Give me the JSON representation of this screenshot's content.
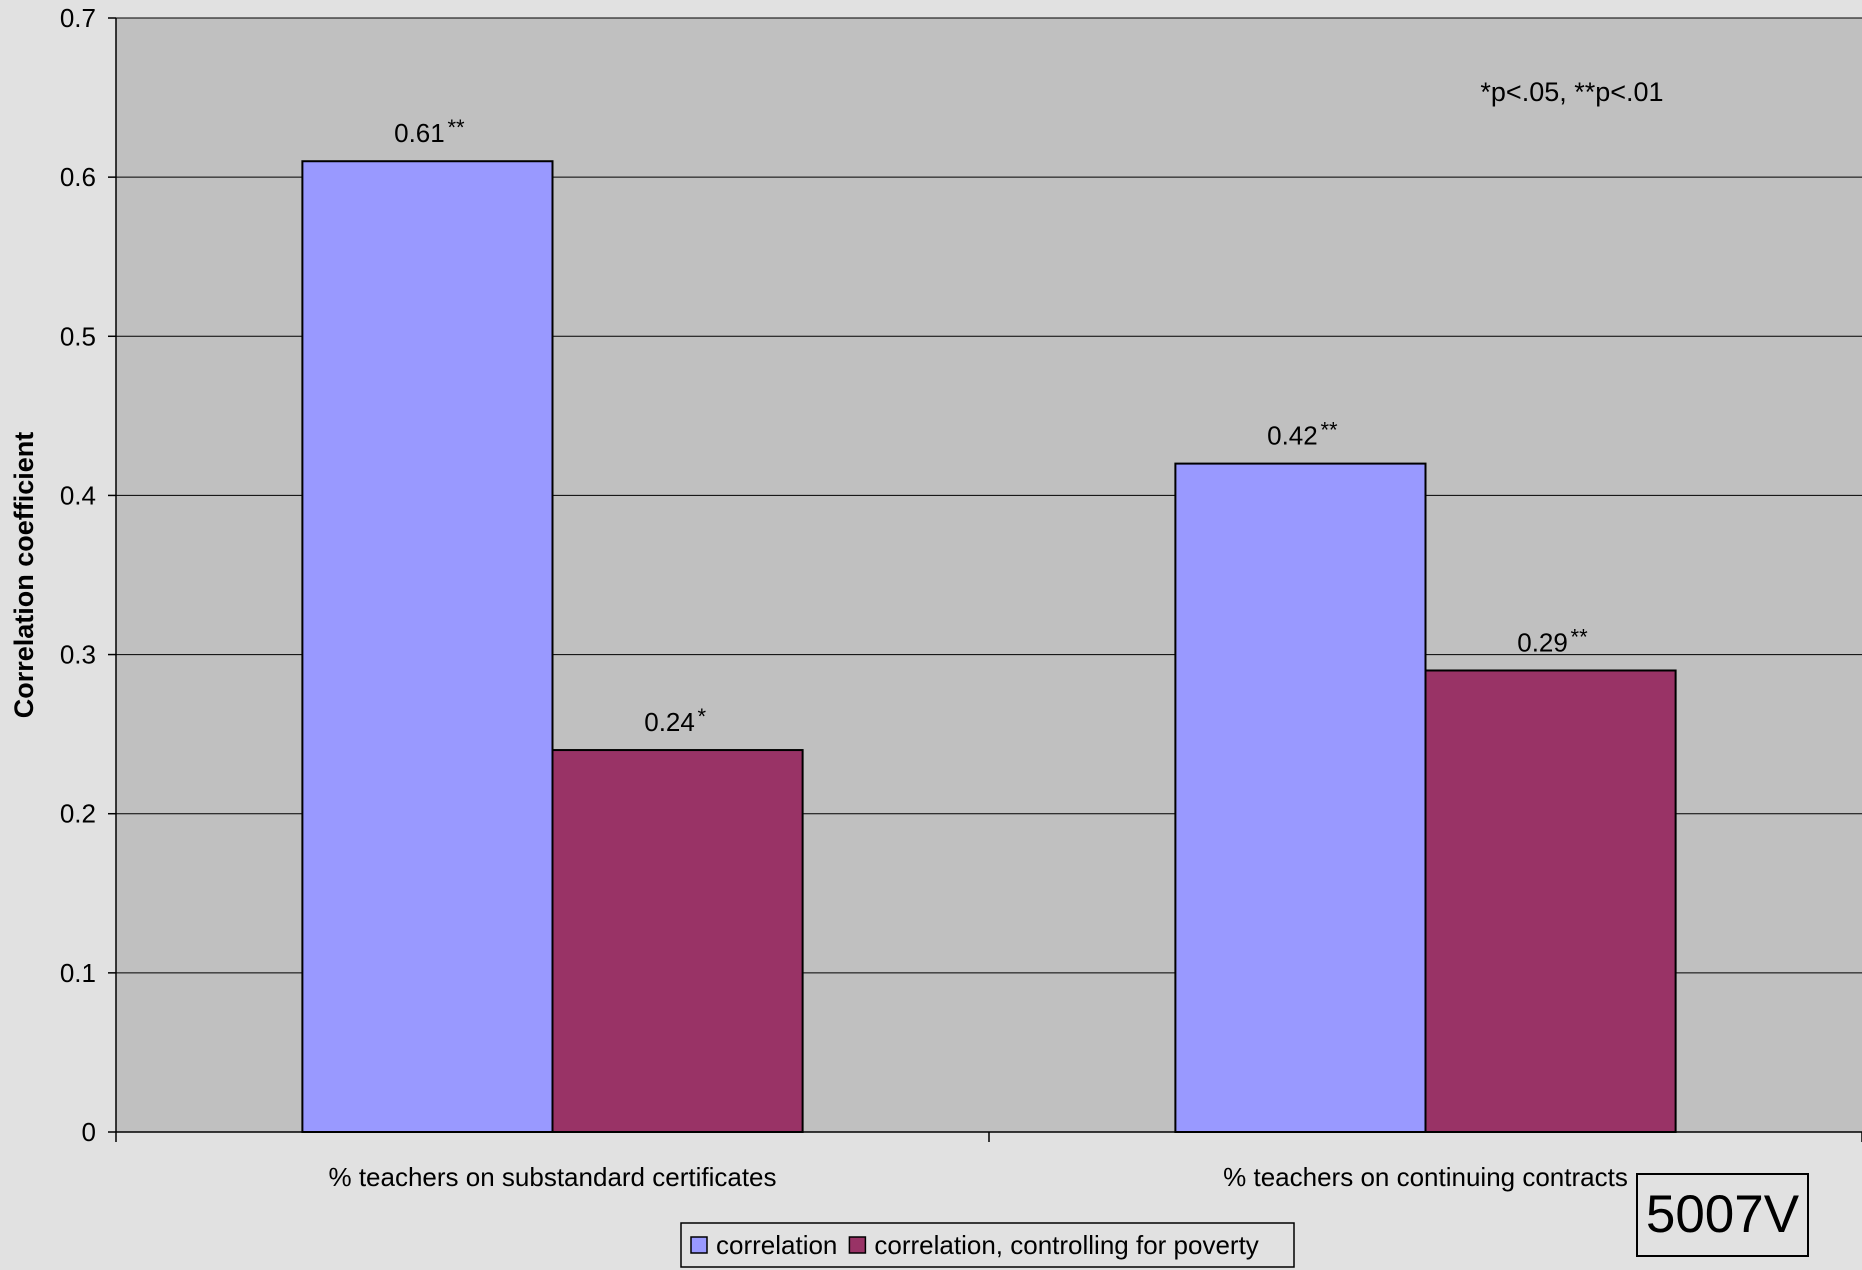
{
  "chart_data": {
    "type": "bar",
    "title": "",
    "xlabel": "",
    "ylabel": "Correlation coefficient",
    "ylim": [
      0,
      0.7
    ],
    "yticks": [
      "0",
      "0.1",
      "0.2",
      "0.3",
      "0.4",
      "0.5",
      "0.6",
      "0.7"
    ],
    "grid": true,
    "legend_position": "bottom",
    "categories": [
      "% teachers on substandard certificates",
      "% teachers on continuing contracts"
    ],
    "series": [
      {
        "name": "correlation",
        "color": "#9999ff",
        "values": [
          0.61,
          0.42
        ],
        "labels": [
          "0.61",
          "0.42"
        ],
        "significance": [
          "**",
          "**"
        ]
      },
      {
        "name": "correlation, controlling for poverty",
        "color": "#993366",
        "values": [
          0.24,
          0.29
        ],
        "labels": [
          "0.24",
          "0.29"
        ],
        "significance": [
          "*",
          "**"
        ]
      }
    ],
    "annotation": "*p<.05, **p<.01"
  },
  "stamp_label": "5007V"
}
